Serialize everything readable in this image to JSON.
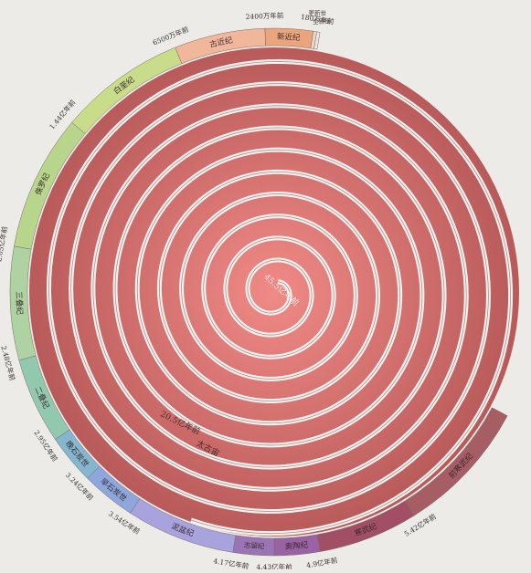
{
  "colors": {
    "background": "#ecebe8",
    "spiral_center": "#f08a86",
    "spiral_outer": "#b85a5a",
    "ring_gap": "#f4f1ee"
  },
  "center_label": "45.5亿年前",
  "inner_labels": {
    "archean_time": "20.5亿年前",
    "archean_name": "太古宙"
  },
  "periods": [
    {
      "name": "前寒武纪",
      "color": "#a65e64"
    },
    {
      "name": "寒武纪",
      "color": "#a24f66"
    },
    {
      "name": "奥陶纪",
      "color": "#9a62a5"
    },
    {
      "name": "志留纪",
      "color": "#9b74b6"
    },
    {
      "name": "泥盆纪",
      "color": "#a8a3dd"
    },
    {
      "name": "早石炭世",
      "color": "#8da7dc"
    },
    {
      "name": "晚石炭世",
      "color": "#84b6cf"
    },
    {
      "name": "二叠纪",
      "color": "#92c9ae"
    },
    {
      "name": "三叠纪",
      "color": "#aed2a1"
    },
    {
      "name": "侏罗纪",
      "color": "#b8d68b"
    },
    {
      "name": "白垩纪",
      "color": "#c9dc8a"
    },
    {
      "name": "古近纪",
      "color": "#f1b79a"
    },
    {
      "name": "新近纪",
      "color": "#eaa57c"
    },
    {
      "name": "更新世",
      "color": "#e9d5c6"
    },
    {
      "name": "全新世",
      "color": "#f2e6dc"
    }
  ],
  "time_labels": [
    "5.42亿年前",
    "4.9亿年前",
    "4.43亿年前",
    "4.17亿年前",
    "3.54亿年前",
    "3.24亿年前",
    "2.95亿年前",
    "2.48亿年前",
    "2.05亿年前",
    "1.44亿年前",
    "6500万年前",
    "2400万年前",
    "180万年前"
  ]
}
